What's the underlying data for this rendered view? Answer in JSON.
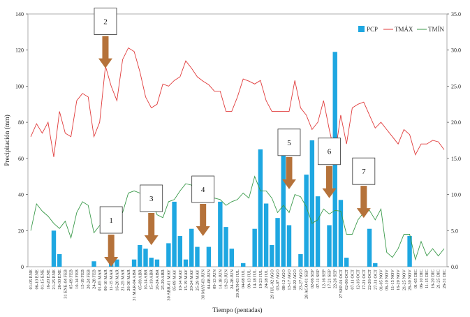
{
  "chart_data": {
    "type": "bar+line",
    "title": "",
    "xlabel": "Tiempo (pentadas)",
    "ylabel": "Precipitación (mm)",
    "ylim": [
      0,
      140
    ],
    "y2lim": [
      0,
      35
    ],
    "yticks": [
      0,
      20,
      40,
      60,
      80,
      100,
      120,
      140
    ],
    "y2ticks": [
      "0.0",
      "5.0",
      "10.0",
      "15.0",
      "20.0",
      "25.0",
      "30.0",
      "35.0"
    ],
    "legend": [
      "PCP",
      "TMÁX",
      "TMÍN"
    ],
    "legend_position": "top-right",
    "categories": [
      "01-05 ENE",
      "06-10 ENE",
      "01-15 ENE",
      "16-20 ENE",
      "21-25 ENE",
      "26-30 ENE",
      "31 ENE-04 FEB",
      "05-09 FEB",
      "10-14 FEB",
      "15-19 FEB",
      "20-24 FEB",
      "24-28 FEB",
      "01-05 MAR",
      "06-10 MAR",
      "11-15 MAR",
      "16-20 MAR",
      "21-25 MAR",
      "26-30 MAR",
      "31 MAR-04 ABR",
      "05-09 ABR",
      "10-14 ABR",
      "15-19 ABR",
      "20-24 ABR",
      "25-29 ABR",
      "30 ABR-01 MAY",
      "05-09 MAY",
      "10-14 MAY",
      "15-19 MAY",
      "20-24 MAY",
      "25-29 MAY",
      "30 MAY-03 JUN",
      "04-08 JUN",
      "09-13 JUN",
      "14-18 JUN",
      "19-23 JUN",
      "24-28 JUN",
      "29 JUN-03 JUL",
      "04-08 JUL",
      "09-13 JUL",
      "14-18 JUL",
      "19-23 JUL",
      "24-28 JUL",
      "29 JUL-02 AGO",
      "03-07 AGO",
      "08-12 AGO",
      "13-17 AGO",
      "18-22 AGO",
      "23-27 AGO",
      "28 AGO-01 SEP",
      "02-06 SEP",
      "07-11 SEP",
      "12-16 SEP",
      "17-21 SEP",
      "22-26 SEP",
      "27 SEP-01 OCT",
      "02-06 OCT",
      "07-11 OCT",
      "12-16 OCT",
      "17-21 OCT",
      "22-26 OCT",
      "27-31 OCT",
      "01-05 NOV",
      "06-10 NOV",
      "11-15 NOV",
      "16-20 NOV",
      "21-25 NOV",
      "26-30 NOV",
      "01-05 DIC",
      "06-10 DIC",
      "11-15 DIC",
      "16-20 DIC",
      "21-25 DIC",
      "26-31 DIC"
    ],
    "series": [
      {
        "name": "PCP",
        "type": "bar",
        "axis": "left",
        "color": "#1ea7e1",
        "values": [
          0,
          0,
          0,
          0,
          20,
          7,
          0,
          0,
          0,
          0,
          0,
          3,
          0,
          0,
          4,
          4,
          0,
          0,
          4,
          12,
          10,
          5,
          4,
          0,
          13,
          36,
          17,
          4,
          21,
          11,
          0,
          11,
          0,
          36,
          22,
          10,
          0,
          2,
          0,
          21,
          65,
          35,
          12,
          27,
          65,
          23,
          0,
          7,
          51,
          70,
          39,
          0,
          23,
          119,
          37,
          5,
          0,
          0,
          0,
          21,
          2,
          0,
          0,
          0,
          0,
          0,
          17,
          0,
          0,
          0,
          0,
          0,
          0
        ]
      },
      {
        "name": "TMÁX",
        "type": "line",
        "axis": "right",
        "color": "#e03a3a",
        "values": [
          18,
          19.8,
          18.5,
          20,
          15.2,
          21.5,
          18.5,
          18,
          23,
          24,
          23.5,
          18,
          20,
          27.8,
          25,
          23,
          28.7,
          30.3,
          29.8,
          27,
          23.5,
          22,
          22.5,
          25.3,
          25,
          25.8,
          26.3,
          28.5,
          27.5,
          26.3,
          25.7,
          25.2,
          24.3,
          24.3,
          21.5,
          21.5,
          23.5,
          26,
          25.7,
          25.3,
          25.8,
          23,
          21.5,
          21.5,
          21.5,
          21.5,
          25.8,
          22,
          21,
          19,
          20,
          23,
          19,
          15.5,
          21,
          17,
          22,
          22.5,
          22.8,
          21,
          19.2,
          20,
          19,
          18,
          17,
          19,
          18.3,
          15.5,
          17,
          17,
          17.5,
          17.3,
          16.2
        ]
      },
      {
        "name": "TMÍN",
        "type": "line",
        "axis": "right",
        "color": "#3a9a4a",
        "values": [
          5,
          8.7,
          7.7,
          7,
          6,
          5.3,
          6.3,
          4,
          7.5,
          9,
          8.5,
          4.7,
          5.7,
          6.5,
          6.6,
          7,
          7.5,
          10.2,
          10.5,
          10.2,
          10,
          9.2,
          7.2,
          6.8,
          9,
          9.3,
          10.5,
          11.5,
          11.3,
          10,
          10.3,
          9.3,
          9.5,
          9.3,
          8.5,
          9,
          9.3,
          10.2,
          9.5,
          12.5,
          10.5,
          10.5,
          9.5,
          7.5,
          8.5,
          7.5,
          10,
          9.7,
          8.3,
          6,
          6.5,
          8,
          7.3,
          7.8,
          7.7,
          4.5,
          4.5,
          6.5,
          7.5,
          7.8,
          6.5,
          8,
          2,
          1.3,
          2.5,
          4.5,
          4.5,
          1,
          3.5,
          1.5,
          2.5,
          1.5,
          2.5
        ]
      }
    ],
    "annotations": [
      {
        "label": "1",
        "category_index": 14,
        "arrow_tip_value": 0
      },
      {
        "label": "2",
        "category_index": 13,
        "arrow_tip_value": 110
      },
      {
        "label": "3",
        "category_index": 21,
        "arrow_tip_value": 12
      },
      {
        "label": "4",
        "category_index": 30,
        "arrow_tip_value": 17
      },
      {
        "label": "5",
        "category_index": 45,
        "arrow_tip_value": 43
      },
      {
        "label": "6",
        "category_index": 52,
        "arrow_tip_value": 38
      },
      {
        "label": "7",
        "category_index": 58,
        "arrow_tip_value": 27
      }
    ]
  }
}
